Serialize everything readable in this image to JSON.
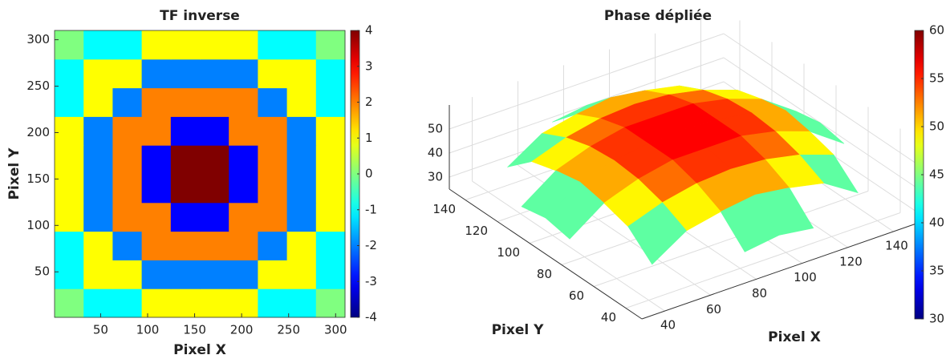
{
  "chart_data": [
    {
      "type": "heatmap",
      "title": "TF inverse",
      "xlabel": "Pixel X",
      "ylabel": "Pixel Y",
      "xlim": [
        1,
        310
      ],
      "ylim": [
        1,
        310
      ],
      "xticks": [
        50,
        100,
        150,
        200,
        250,
        300
      ],
      "yticks": [
        50,
        100,
        150,
        200,
        250,
        300
      ],
      "colormap": "jet",
      "clim": [
        -4,
        4
      ],
      "cticks": [
        -4,
        -3,
        -2,
        -1,
        0,
        1,
        2,
        3,
        4
      ],
      "z": [
        [
          0,
          -1,
          -1,
          1,
          1,
          1,
          1,
          -1,
          -1,
          0
        ],
        [
          -1,
          1,
          1,
          -2,
          -2,
          -2,
          -2,
          1,
          1,
          -1
        ],
        [
          -1,
          1,
          -2,
          2,
          2,
          2,
          2,
          -2,
          1,
          -1
        ],
        [
          1,
          -2,
          2,
          2,
          -3,
          -3,
          2,
          2,
          -2,
          1
        ],
        [
          1,
          -2,
          2,
          -3,
          4,
          4,
          -3,
          2,
          -2,
          1
        ],
        [
          1,
          -2,
          2,
          -3,
          4,
          4,
          -3,
          2,
          -2,
          1
        ],
        [
          1,
          -2,
          2,
          2,
          -3,
          -3,
          2,
          2,
          -2,
          1
        ],
        [
          -1,
          1,
          -2,
          2,
          2,
          2,
          2,
          -2,
          1,
          -1
        ],
        [
          -1,
          1,
          1,
          -2,
          -2,
          -2,
          -2,
          1,
          1,
          -1
        ],
        [
          0,
          -1,
          -1,
          1,
          1,
          1,
          1,
          -1,
          -1,
          0
        ]
      ]
    },
    {
      "type": "surface3d",
      "title": "Phase dépliée",
      "xlabel": "Pixel X",
      "ylabel": "Pixel Y",
      "xlim": [
        30,
        150
      ],
      "ylim": [
        30,
        150
      ],
      "zlim": [
        25,
        60
      ],
      "xticks": [
        40,
        60,
        80,
        100,
        120,
        140
      ],
      "yticks": [
        40,
        60,
        80,
        100,
        120,
        140
      ],
      "zticks": [
        30,
        40,
        50
      ],
      "colormap": "jet",
      "clim": [
        30,
        60
      ],
      "cticks": [
        30,
        35,
        40,
        45,
        50,
        55,
        60
      ],
      "grid": true,
      "x": [
        30,
        45,
        60,
        75,
        90,
        105,
        120,
        135,
        150
      ],
      "y": [
        30,
        45,
        60,
        75,
        90,
        105,
        120,
        135,
        150
      ],
      "z": [
        [
          null,
          null,
          null,
          38,
          40,
          38,
          null,
          null,
          null
        ],
        [
          null,
          36,
          45,
          48,
          50,
          48,
          45,
          36,
          null
        ],
        [
          null,
          45,
          50,
          53,
          54,
          53,
          50,
          45,
          null
        ],
        [
          38,
          48,
          53,
          56,
          56,
          56,
          53,
          48,
          38
        ],
        [
          40,
          50,
          54,
          56,
          57,
          56,
          54,
          50,
          40
        ],
        [
          38,
          48,
          53,
          56,
          56,
          56,
          53,
          48,
          38
        ],
        [
          null,
          45,
          50,
          53,
          54,
          53,
          50,
          45,
          null
        ],
        [
          null,
          36,
          45,
          48,
          50,
          48,
          45,
          36,
          null
        ],
        [
          null,
          null,
          null,
          38,
          40,
          38,
          null,
          null,
          null
        ]
      ]
    }
  ]
}
